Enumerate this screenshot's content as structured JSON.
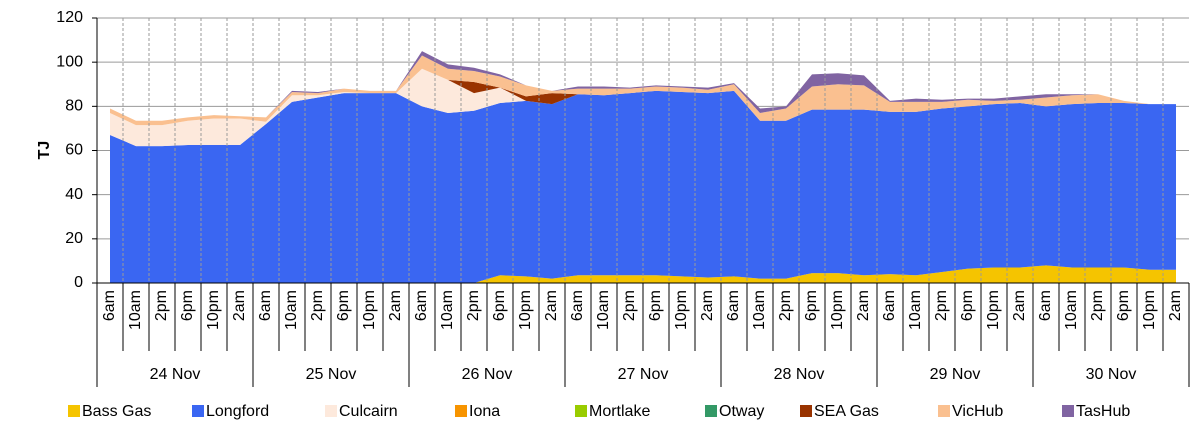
{
  "chart_data": {
    "type": "stacked-area",
    "y_label": "TJ",
    "ylim": [
      0,
      120
    ],
    "yticks": [
      0,
      20,
      40,
      60,
      80,
      100,
      120
    ],
    "grid": true,
    "days": [
      "24 Nov",
      "25 Nov",
      "26 Nov",
      "27 Nov",
      "28 Nov",
      "29 Nov",
      "30 Nov"
    ],
    "categories": [
      "6am",
      "10am",
      "2pm",
      "6pm",
      "10pm",
      "2am",
      "6am",
      "10am",
      "2pm",
      "6pm",
      "10pm",
      "2am",
      "6am",
      "10am",
      "2pm",
      "6pm",
      "10pm",
      "2am",
      "6am",
      "10am",
      "2pm",
      "6pm",
      "10pm",
      "2am",
      "6am",
      "10am",
      "2pm",
      "6pm",
      "10pm",
      "2am",
      "6am",
      "10am",
      "2pm",
      "6pm",
      "10pm",
      "2am",
      "6am",
      "10am",
      "2pm",
      "6pm",
      "10pm",
      "2am"
    ],
    "series": [
      {
        "name": "Bass Gas",
        "color": "#f5c400",
        "values": [
          0,
          0,
          0,
          0,
          0,
          0,
          0,
          0,
          0,
          0,
          0,
          0,
          0,
          0,
          0,
          3.5,
          3,
          2,
          3.5,
          3.5,
          3.5,
          3.5,
          3,
          2.5,
          3,
          2,
          2,
          4.5,
          4.5,
          3.5,
          4,
          3.5,
          5,
          6.5,
          7,
          7,
          8,
          7,
          7,
          7,
          6,
          6
        ]
      },
      {
        "name": "Longford",
        "color": "#3a66f2",
        "values": [
          67,
          62,
          62,
          62.5,
          62.5,
          62.5,
          72,
          82,
          84,
          86,
          86,
          86,
          80,
          77,
          78,
          78,
          79.5,
          79,
          82,
          81.5,
          82.5,
          83.5,
          83.5,
          83.5,
          84,
          71.5,
          71.5,
          74,
          74,
          75,
          73.5,
          74,
          74,
          73.5,
          74,
          74.5,
          72,
          74,
          74.5,
          74.5,
          75,
          75
        ]
      },
      {
        "name": "Culcairn",
        "color": "#fde9dc",
        "values": [
          10,
          9.5,
          9.5,
          11,
          12,
          12,
          1,
          3,
          1,
          0.5,
          0,
          0,
          17,
          15,
          8,
          7,
          0,
          0,
          0,
          0,
          0,
          0,
          0,
          0,
          0,
          0,
          0,
          0,
          0,
          0,
          0,
          0,
          0,
          0,
          0,
          0,
          0,
          0,
          0,
          0,
          0,
          0
        ]
      },
      {
        "name": "Iona",
        "color": "#f79400",
        "values": [
          0,
          0,
          0,
          0,
          0,
          0,
          0,
          0,
          0,
          0,
          0,
          0,
          0,
          0,
          0,
          0,
          0,
          0,
          0,
          0,
          0,
          0,
          0,
          0,
          0,
          0,
          0,
          0,
          0,
          0,
          0,
          0,
          0,
          0,
          0,
          0,
          0,
          0,
          0,
          0,
          0,
          0
        ]
      },
      {
        "name": "Mortlake",
        "color": "#99cc00",
        "values": [
          0,
          0,
          0,
          0,
          0,
          0,
          0,
          0,
          0,
          0,
          0,
          0,
          0,
          0,
          0,
          0,
          0,
          0,
          0,
          0,
          0,
          0,
          0,
          0,
          0,
          0,
          0,
          0,
          0,
          0,
          0,
          0,
          0,
          0,
          0,
          0,
          0,
          0,
          0,
          0,
          0,
          0
        ]
      },
      {
        "name": "Otway",
        "color": "#339966",
        "values": [
          0,
          0,
          0,
          0,
          0,
          0,
          0,
          0,
          0,
          0,
          0,
          0,
          0,
          0,
          0,
          0,
          0,
          0,
          0,
          0,
          0,
          0,
          0,
          0,
          0,
          0,
          0,
          0,
          0,
          0,
          0,
          0,
          0,
          0,
          0,
          0,
          0,
          0,
          0,
          0,
          0,
          0
        ]
      },
      {
        "name": "SEA Gas",
        "color": "#993300",
        "values": [
          0,
          0,
          0,
          0,
          0,
          0,
          0,
          0,
          0,
          0,
          0,
          0,
          0,
          0,
          5,
          0,
          2,
          5,
          0,
          0,
          0,
          0,
          0,
          0,
          0,
          0,
          0,
          0,
          0,
          0,
          0,
          0,
          0,
          0,
          0,
          0,
          0,
          0,
          0,
          0,
          0,
          0
        ]
      },
      {
        "name": "VicHub",
        "color": "#fac090",
        "values": [
          2,
          2,
          2,
          1.5,
          1.5,
          1,
          2,
          1.5,
          1,
          1.5,
          1,
          1,
          6,
          5,
          5,
          5,
          5,
          1,
          2.5,
          3,
          2,
          2,
          2,
          1.5,
          3,
          3.5,
          5.5,
          10.5,
          11.5,
          11,
          4.5,
          4.5,
          3,
          3,
          1.5,
          1.5,
          4,
          4,
          4,
          1,
          0,
          0
        ]
      },
      {
        "name": "TasHub",
        "color": "#8064a2",
        "values": [
          0,
          0,
          0,
          0,
          0,
          0,
          0,
          0.5,
          0.5,
          0,
          0,
          0,
          2,
          2,
          1.5,
          1,
          0,
          0,
          1,
          1,
          0.5,
          0.5,
          0.5,
          1,
          0.5,
          2,
          1,
          5.5,
          5,
          4.5,
          0.5,
          1.5,
          1,
          0.5,
          1,
          1.5,
          1.5,
          0.5,
          0,
          0,
          0,
          0
        ]
      }
    ]
  }
}
